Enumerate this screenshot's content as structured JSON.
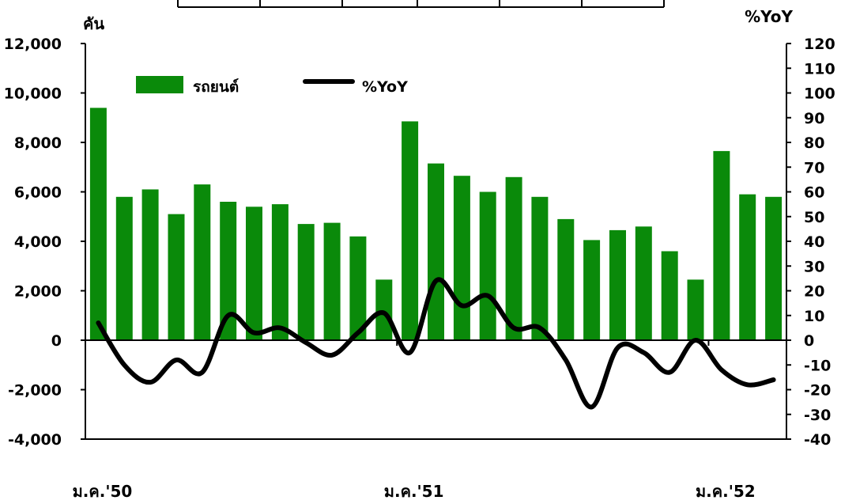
{
  "chart_data": {
    "type": "bar",
    "left_unit": "คัน",
    "right_unit": "%YoY",
    "left_ticks": [
      "12,000",
      "10,000",
      "8,000",
      "6,000",
      "4,000",
      "2,000",
      "0",
      "-2,000",
      "-4,000"
    ],
    "right_ticks": [
      "120",
      "110",
      "100",
      "90",
      "80",
      "70",
      "60",
      "50",
      "40",
      "30",
      "20",
      "10",
      "0",
      "-10",
      "-20",
      "-30",
      "-40"
    ],
    "ylim_left": [
      -4000,
      12000
    ],
    "ylim_right": [
      -40,
      120
    ],
    "x_labels": [
      "ม.ค.'50",
      "ม.ค.'51",
      "ม.ค.'52"
    ],
    "legend_position": "top-left",
    "grid": false,
    "colors": {
      "bar": "#0a8a0a",
      "line": "#000000"
    },
    "series": [
      {
        "name": "รถยนต์",
        "kind": "bar",
        "axis": "left",
        "values": [
          9400,
          5800,
          6100,
          5100,
          6300,
          5600,
          5400,
          5500,
          4700,
          4750,
          4200,
          2450,
          8850,
          7150,
          6650,
          6000,
          6600,
          5800,
          4900,
          4050,
          4450,
          4600,
          3600,
          2450,
          7650,
          5900,
          5800
        ]
      },
      {
        "name": "%YoY",
        "kind": "line",
        "axis": "right",
        "values": [
          7,
          -10,
          -17,
          -8,
          -13,
          10,
          3,
          5,
          -1,
          -6,
          3,
          11,
          -5,
          24,
          14,
          18,
          5,
          5,
          -8,
          -27,
          -3,
          -5,
          -13,
          0,
          -12,
          -18,
          -16
        ]
      }
    ]
  }
}
